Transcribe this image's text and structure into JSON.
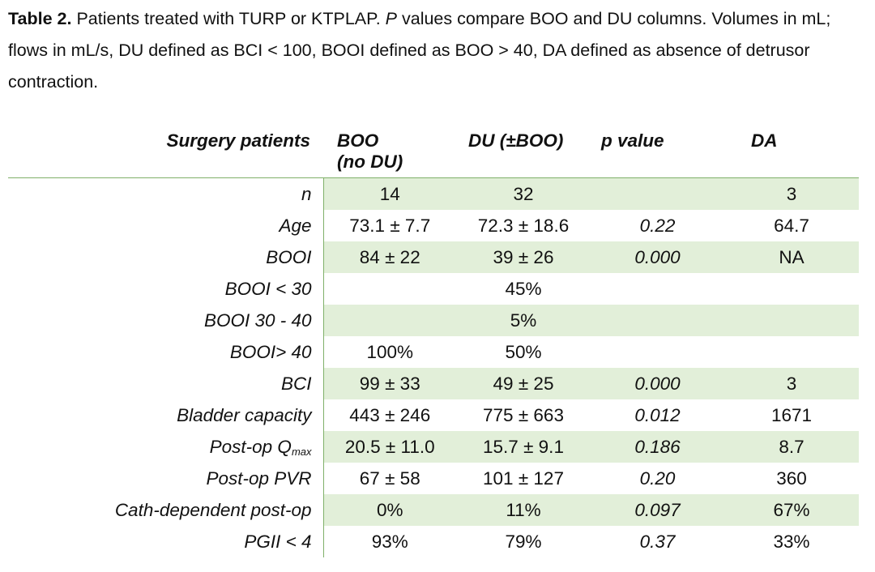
{
  "caption": {
    "table_label": "Table 2.",
    "part1": " Patients treated with TURP or KTPLAP. ",
    "p_italic": "P",
    "part2": " values compare BOO and DU columns. Volumes in mL; flows in mL/s, DU defined as BCI < 100, BOOI defined as BOO > 40, DA defined as absence of detrusor contraction."
  },
  "table": {
    "headers": {
      "label": "Surgery patients",
      "boo_line1": "BOO",
      "boo_line2": "(no DU)",
      "du": "DU (±BOO)",
      "p": "p value",
      "da": "DA"
    },
    "rows": [
      {
        "label": "n",
        "boo": "14",
        "du": "32",
        "p": "",
        "da": "3"
      },
      {
        "label": "Age",
        "boo": "73.1 ± 7.7",
        "du": "72.3 ± 18.6",
        "p": "0.22",
        "da": "64.7"
      },
      {
        "label": "BOOI",
        "boo": "84 ± 22",
        "du": "39 ± 26",
        "p": "0.000",
        "da": "NA"
      },
      {
        "label": "BOOI < 30",
        "boo": "",
        "du": "45%",
        "p": "",
        "da": ""
      },
      {
        "label": "BOOI 30 - 40",
        "boo": "",
        "du": "5%",
        "p": "",
        "da": ""
      },
      {
        "label": "BOOI> 40",
        "boo": "100%",
        "du": "50%",
        "p": "",
        "da": ""
      },
      {
        "label": "BCI",
        "boo": "99 ± 33",
        "du": "49 ± 25",
        "p": "0.000",
        "da": "3"
      },
      {
        "label": "Bladder capacity",
        "boo": "443 ± 246",
        "du": "775 ± 663",
        "p": "0.012",
        "da": "1671"
      },
      {
        "label_main": "Post-op Q",
        "label_sub": "max",
        "boo": "20.5 ± 11.0",
        "du": "15.7 ± 9.1",
        "p": "0.186",
        "da": "8.7"
      },
      {
        "label": "Post-op PVR",
        "boo": "67 ± 58",
        "du": "101 ± 127",
        "p": "0.20",
        "da": "360"
      },
      {
        "label": "Cath-dependent post-op",
        "boo": "0%",
        "du": "11%",
        "p": "0.097",
        "da": "67%"
      },
      {
        "label": "PGII < 4",
        "boo": "93%",
        "du": "79%",
        "p": "0.37",
        "da": "33%"
      }
    ]
  },
  "colors": {
    "shade": "#e2efd9",
    "rule": "#7fb069"
  }
}
